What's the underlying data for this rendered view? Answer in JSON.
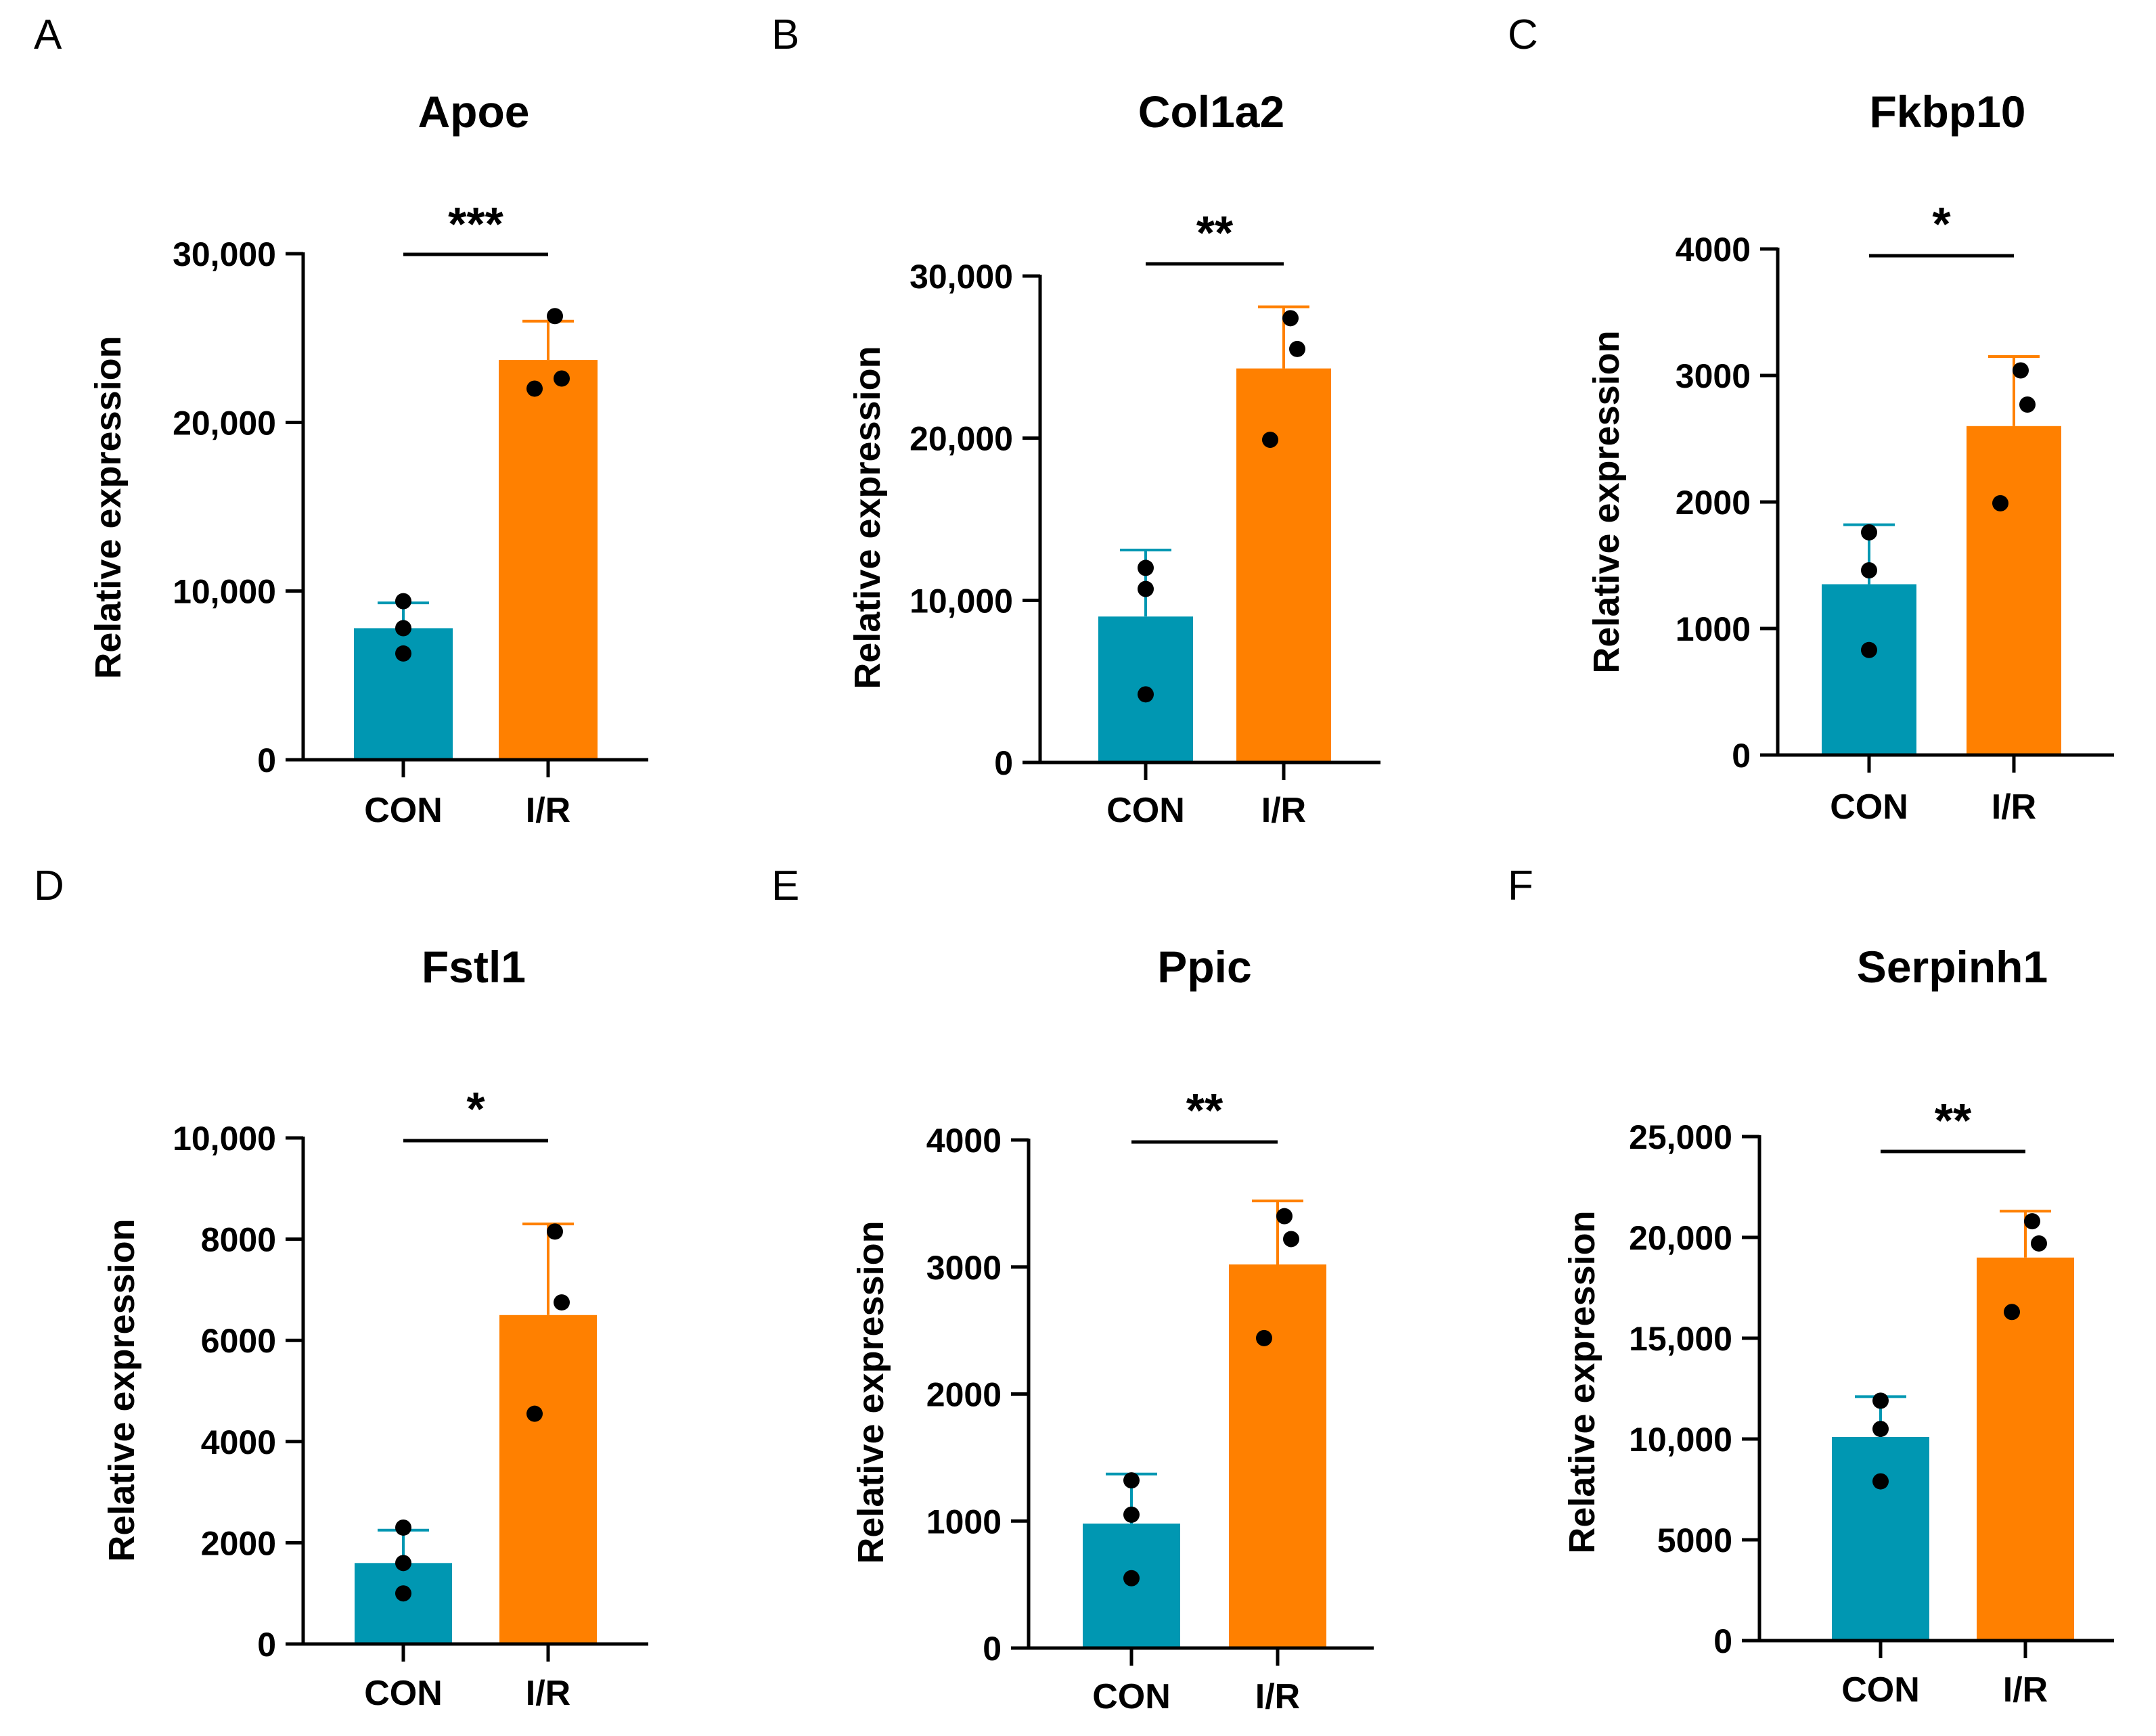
{
  "figure": {
    "colors": {
      "con": "#0097b2",
      "ir": "#ff8000",
      "axis": "#000000",
      "dot": "#000000"
    }
  },
  "chart_data": [
    {
      "panel_label": "A",
      "type": "bar",
      "title": "Apoe",
      "ylabel": "Relative expression",
      "categories": [
        "CON",
        "I/R"
      ],
      "values": [
        7800,
        23700
      ],
      "errors": [
        1500,
        2300
      ],
      "points": [
        [
          9400,
          7800,
          6300
        ],
        [
          26300,
          22600,
          22000
        ]
      ],
      "ylim": [
        0,
        30000
      ],
      "yticks": [
        0,
        10000,
        20000,
        30000
      ],
      "ytick_labels": [
        "0",
        "10,000",
        "20,000",
        "30,000"
      ],
      "significance": "***"
    },
    {
      "panel_label": "B",
      "type": "bar",
      "title": "Col1a2",
      "ylabel": "Relative expression",
      "categories": [
        "CON",
        "I/R"
      ],
      "values": [
        9000,
        24300
      ],
      "errors": [
        4100,
        3800
      ],
      "points": [
        [
          12000,
          10700,
          4200
        ],
        [
          27400,
          25500,
          19900
        ]
      ],
      "ylim": [
        0,
        30000
      ],
      "yticks": [
        0,
        10000,
        20000,
        30000
      ],
      "ytick_labels": [
        "0",
        "10,000",
        "20,000",
        "30,000"
      ],
      "significance": "**"
    },
    {
      "panel_label": "C",
      "type": "bar",
      "title": "Fkbp10",
      "ylabel": "Relative expression",
      "categories": [
        "CON",
        "I/R"
      ],
      "values": [
        1350,
        2600
      ],
      "errors": [
        470,
        550
      ],
      "points": [
        [
          1760,
          1460,
          830
        ],
        [
          3040,
          2770,
          1990
        ]
      ],
      "ylim": [
        0,
        4000
      ],
      "yticks": [
        0,
        1000,
        2000,
        3000,
        4000
      ],
      "ytick_labels": [
        "0",
        "1000",
        "2000",
        "3000",
        "4000"
      ],
      "significance": "*"
    },
    {
      "panel_label": "D",
      "type": "bar",
      "title": "Fstl1",
      "ylabel": "Relative expression",
      "categories": [
        "CON",
        "I/R"
      ],
      "values": [
        1600,
        6500
      ],
      "errors": [
        650,
        1800
      ],
      "points": [
        [
          2300,
          1600,
          1000
        ],
        [
          8150,
          6750,
          4550
        ]
      ],
      "ylim": [
        0,
        10000
      ],
      "yticks": [
        0,
        2000,
        4000,
        6000,
        8000,
        10000
      ],
      "ytick_labels": [
        "0",
        "2000",
        "4000",
        "6000",
        "8000",
        "10,000"
      ],
      "significance": "*"
    },
    {
      "panel_label": "E",
      "type": "bar",
      "title": "Ppic",
      "ylabel": "Relative expression",
      "categories": [
        "CON",
        "I/R"
      ],
      "values": [
        980,
        3020
      ],
      "errors": [
        390,
        500
      ],
      "points": [
        [
          1320,
          1050,
          550
        ],
        [
          3400,
          3220,
          2440
        ]
      ],
      "ylim": [
        0,
        4000
      ],
      "yticks": [
        0,
        1000,
        2000,
        3000,
        4000
      ],
      "ytick_labels": [
        "0",
        "1000",
        "2000",
        "3000",
        "4000"
      ],
      "significance": "**"
    },
    {
      "panel_label": "F",
      "type": "bar",
      "title": "Serpinh1",
      "ylabel": "Relative expression",
      "categories": [
        "CON",
        "I/R"
      ],
      "values": [
        10100,
        19000
      ],
      "errors": [
        2000,
        2300
      ],
      "points": [
        [
          11900,
          10500,
          7900
        ],
        [
          20800,
          19700,
          16300
        ]
      ],
      "ylim": [
        0,
        25000
      ],
      "yticks": [
        0,
        5000,
        10000,
        15000,
        20000,
        25000
      ],
      "ytick_labels": [
        "0",
        "5000",
        "10,000",
        "15,000",
        "20,000",
        "25,000"
      ],
      "significance": "**"
    }
  ]
}
